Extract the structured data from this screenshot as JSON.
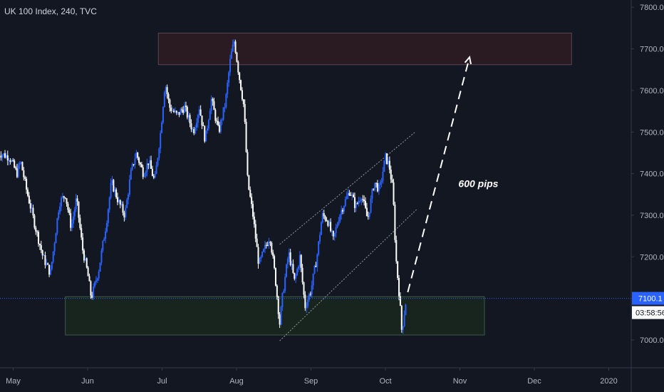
{
  "header": {
    "title": "UK 100 Index, 240, TVC"
  },
  "colors": {
    "background": "#131722",
    "candle": "#ffffff",
    "candle_alt": "#2962ff",
    "supply_zone": "#2a1a22",
    "demand_zone": "#17251e",
    "price_line": "#2962ff"
  },
  "chart_data": {
    "type": "candlestick",
    "title": "UK 100 Index, 240, TVC",
    "x_ticks": [
      "May",
      "Jun",
      "Jul",
      "Aug",
      "Sep",
      "Oct",
      "Nov",
      "Dec",
      "2020"
    ],
    "y_ticks": [
      7000.0,
      7100.0,
      7200.0,
      7300.0,
      7400.0,
      7500.0,
      7600.0,
      7700.0,
      7800.0
    ],
    "ylim": [
      6970,
      7810
    ],
    "xlim": [
      0,
      8.8
    ],
    "grid": false,
    "last_price": {
      "label": "7100.1",
      "value": 7100.1
    },
    "countdown": "03:58:56",
    "path": [
      [
        -0.2,
        7450
      ],
      [
        -0.05,
        7440
      ],
      [
        0.05,
        7400
      ],
      [
        0.1,
        7430
      ],
      [
        0.18,
        7360
      ],
      [
        0.3,
        7270
      ],
      [
        0.4,
        7200
      ],
      [
        0.5,
        7160
      ],
      [
        0.55,
        7230
      ],
      [
        0.62,
        7330
      ],
      [
        0.7,
        7350
      ],
      [
        0.78,
        7270
      ],
      [
        0.85,
        7340
      ],
      [
        0.93,
        7220
      ],
      [
        1.0,
        7160
      ],
      [
        1.05,
        7100
      ],
      [
        1.15,
        7170
      ],
      [
        1.25,
        7280
      ],
      [
        1.32,
        7380
      ],
      [
        1.42,
        7330
      ],
      [
        1.5,
        7300
      ],
      [
        1.58,
        7400
      ],
      [
        1.65,
        7450
      ],
      [
        1.75,
        7400
      ],
      [
        1.82,
        7430
      ],
      [
        1.9,
        7380
      ],
      [
        1.98,
        7500
      ],
      [
        2.04,
        7620
      ],
      [
        2.1,
        7560
      ],
      [
        2.2,
        7540
      ],
      [
        2.3,
        7560
      ],
      [
        2.42,
        7500
      ],
      [
        2.5,
        7560
      ],
      [
        2.58,
        7480
      ],
      [
        2.66,
        7580
      ],
      [
        2.76,
        7500
      ],
      [
        2.85,
        7570
      ],
      [
        2.92,
        7680
      ],
      [
        2.97,
        7720
      ],
      [
        3.03,
        7640
      ],
      [
        3.1,
        7560
      ],
      [
        3.15,
        7380
      ],
      [
        3.22,
        7300
      ],
      [
        3.3,
        7180
      ],
      [
        3.38,
        7220
      ],
      [
        3.45,
        7250
      ],
      [
        3.52,
        7150
      ],
      [
        3.58,
        7040
      ],
      [
        3.62,
        7110
      ],
      [
        3.7,
        7210
      ],
      [
        3.78,
        7140
      ],
      [
        3.85,
        7200
      ],
      [
        3.92,
        7080
      ],
      [
        4.0,
        7120
      ],
      [
        4.08,
        7200
      ],
      [
        4.15,
        7300
      ],
      [
        4.22,
        7290
      ],
      [
        4.3,
        7240
      ],
      [
        4.38,
        7300
      ],
      [
        4.45,
        7330
      ],
      [
        4.52,
        7360
      ],
      [
        4.6,
        7320
      ],
      [
        4.68,
        7350
      ],
      [
        4.76,
        7290
      ],
      [
        4.85,
        7380
      ],
      [
        4.92,
        7360
      ],
      [
        5.0,
        7440
      ],
      [
        5.05,
        7420
      ],
      [
        5.1,
        7360
      ],
      [
        5.14,
        7200
      ],
      [
        5.19,
        7100
      ],
      [
        5.22,
        7020
      ],
      [
        5.28,
        7100
      ]
    ],
    "zones": [
      {
        "name": "supply",
        "x0": 1.95,
        "x1": 7.5,
        "y0": 7662,
        "y1": 7738
      },
      {
        "name": "demand",
        "x0": 0.7,
        "x1": 6.33,
        "y0": 7012,
        "y1": 7104
      }
    ],
    "channel": [
      {
        "x0": 3.58,
        "y0": 7230,
        "x1": 5.4,
        "y1": 7500
      },
      {
        "x0": 3.58,
        "y0": 6998,
        "x1": 5.42,
        "y1": 7314
      }
    ],
    "projection": {
      "x0": 5.3,
      "y0": 7115,
      "x1": 6.13,
      "y1": 7680
    },
    "annotations": [
      {
        "text": "600 pips",
        "x": 5.98,
        "y": 7368
      }
    ]
  }
}
